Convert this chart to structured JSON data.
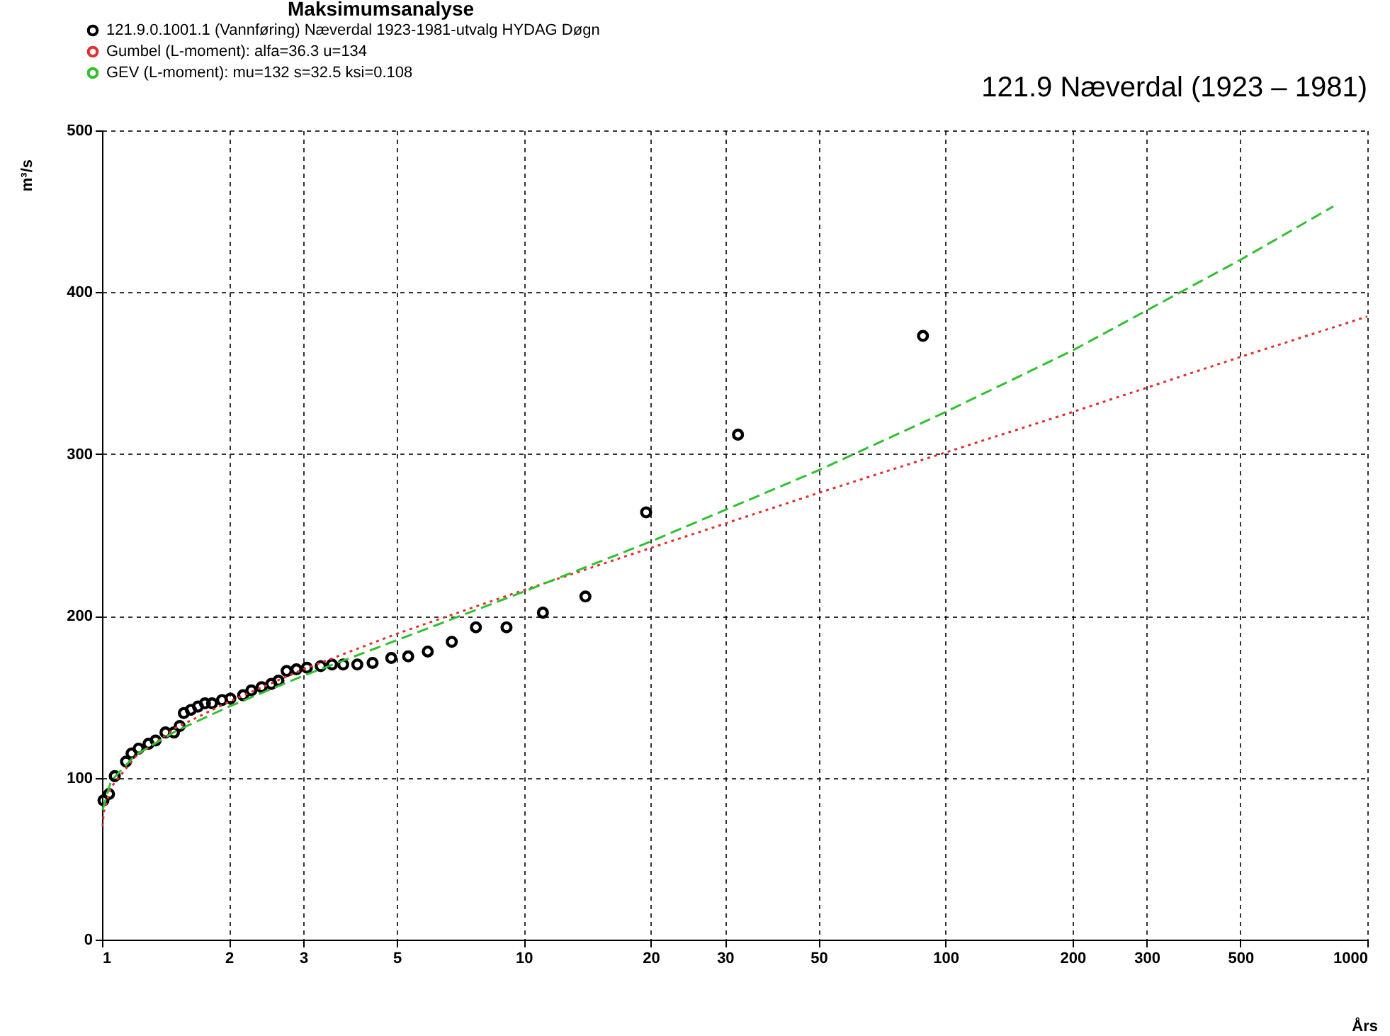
{
  "chart_data": {
    "type": "scatter",
    "title": "Maksimumsanalyse",
    "xlabel": "Års",
    "ylabel": "m³/s",
    "annotations": [
      "121.9 Næverdal (1923 – 1981)"
    ],
    "log": "x",
    "xlim": [
      1,
      1000
    ],
    "xticks": [
      1,
      2,
      3,
      5,
      10,
      20,
      30,
      50,
      100,
      200,
      300,
      500,
      1000
    ],
    "ylim": [
      0,
      500
    ],
    "yticks": [
      0,
      100,
      200,
      300,
      400,
      500
    ],
    "grid": true,
    "legend": "top left",
    "series": [
      {
        "name": "121.9.0.1001.1 (Vannføring) Næverdal  1923-1981-utvalg HYDAG Døgn",
        "marker": "circle",
        "color": "#000000",
        "x": [
          1.008,
          1.039,
          1.072,
          1.14,
          1.175,
          1.221,
          1.289,
          1.34,
          1.414,
          1.481,
          1.528,
          1.563,
          1.624,
          1.688,
          1.754,
          1.823,
          1.925,
          2.015,
          2.16,
          2.26,
          2.39,
          2.52,
          2.62,
          2.74,
          2.89,
          3.06,
          3.3,
          3.51,
          3.73,
          4.03,
          4.38,
          4.85,
          5.32,
          5.92,
          6.75,
          7.7,
          9.1,
          11.1,
          14.0,
          19.5,
          32.2,
          88.4
        ],
        "values": [
          86,
          90,
          101,
          110,
          115,
          118,
          121,
          123,
          128,
          128,
          132,
          140,
          142,
          144,
          146,
          146,
          148,
          149,
          151,
          154,
          156,
          158,
          160,
          166,
          167,
          168,
          169,
          170,
          170,
          170,
          171,
          174,
          175,
          178,
          184,
          193,
          193,
          202,
          212,
          264,
          312,
          373
        ]
      },
      {
        "name": "Gumbel (L-moment): alfa=36.3    u=134",
        "type": "line",
        "marker": "none",
        "line_style": "dotted",
        "color": "#e03030",
        "x": [
          1.003,
          1.01,
          1.05,
          1.2,
          1.5,
          2,
          3,
          5,
          10,
          20,
          50,
          100,
          200,
          500,
          1000
        ],
        "values": [
          70,
          79,
          94,
          113,
          131,
          147,
          167,
          189,
          216,
          242,
          276,
          301,
          326,
          360,
          385
        ]
      },
      {
        "name": "GEV (L-moment): mu=132    s=32.5    ksi=0.108",
        "type": "line",
        "marker": "none",
        "line_style": "dashed",
        "color": "#30c030",
        "x": [
          1.003,
          1.05,
          1.2,
          1.5,
          2,
          3,
          5,
          10,
          20,
          50,
          100,
          200,
          500,
          830
        ],
        "values": [
          80,
          98,
          114,
          129,
          144,
          163,
          185,
          215,
          246,
          290,
          326,
          364,
          420,
          453
        ]
      }
    ]
  }
}
